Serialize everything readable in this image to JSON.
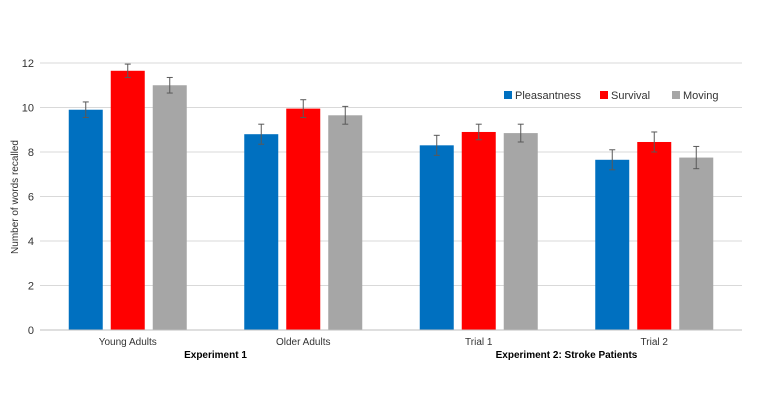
{
  "chart_data": {
    "type": "bar",
    "title": "",
    "ylabel": "Number of words recalled",
    "xlabel": "",
    "ylim": [
      0,
      12
    ],
    "yticks": [
      0,
      2,
      4,
      6,
      8,
      10,
      12
    ],
    "grid": true,
    "legend_position": "top-right",
    "categories": [
      "Young Adults",
      "Older Adults",
      "Trial 1",
      "Trial 2"
    ],
    "groups": [
      "Experiment 1",
      "Experiment 2: Stroke Patients"
    ],
    "series": [
      {
        "name": "Pleasantness",
        "color": "#0070C0",
        "values": [
          9.9,
          8.8,
          8.3,
          7.65
        ],
        "errors": [
          0.35,
          0.45,
          0.45,
          0.45
        ]
      },
      {
        "name": "Survival",
        "color": "#FF0000",
        "values": [
          11.65,
          9.95,
          8.9,
          8.45
        ],
        "errors": [
          0.3,
          0.4,
          0.35,
          0.45
        ]
      },
      {
        "name": "Moving",
        "color": "#A6A6A6",
        "values": [
          11.0,
          9.65,
          8.85,
          7.75
        ],
        "errors": [
          0.35,
          0.4,
          0.4,
          0.5
        ]
      }
    ]
  }
}
